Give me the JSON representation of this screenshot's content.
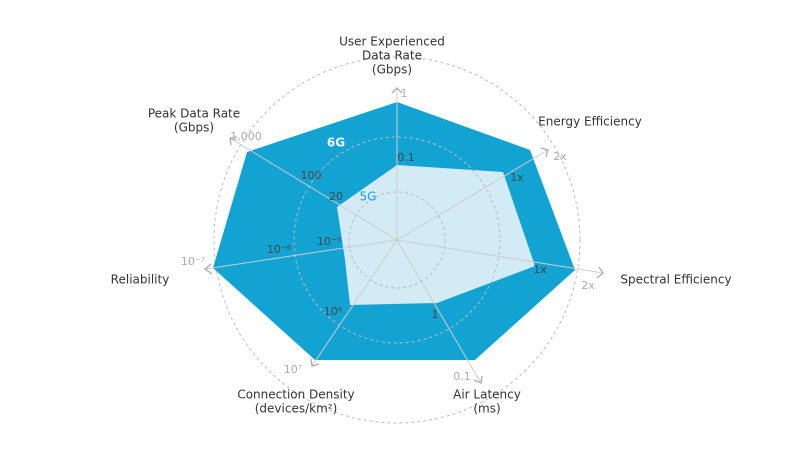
{
  "series": [
    "6G",
    "5G"
  ],
  "axes": [
    {
      "label": [
        "User Experienced",
        "Data Rate",
        "(Gbps)"
      ],
      "ticks": [
        "0.1",
        "1"
      ]
    },
    {
      "label": [
        "Energy Efficiency"
      ],
      "ticks": [
        "1x",
        "2x"
      ]
    },
    {
      "label": [
        "Spectral Efficiency"
      ],
      "ticks": [
        "1x",
        "2x"
      ]
    },
    {
      "label": [
        "Air Latency",
        "(ms)"
      ],
      "ticks": [
        "1",
        "0.1"
      ]
    },
    {
      "label": [
        "Connection Density",
        "(devices/km²)"
      ],
      "ticks": [
        "10⁶",
        "10⁷"
      ]
    },
    {
      "label": [
        "Reliability"
      ],
      "ticks": [
        "10⁻⁵",
        "10⁻⁶",
        "10⁻⁷"
      ]
    },
    {
      "label": [
        "Peak Data Rate",
        "(Gbps)"
      ],
      "ticks": [
        "20",
        "100",
        "1,000"
      ]
    }
  ]
}
